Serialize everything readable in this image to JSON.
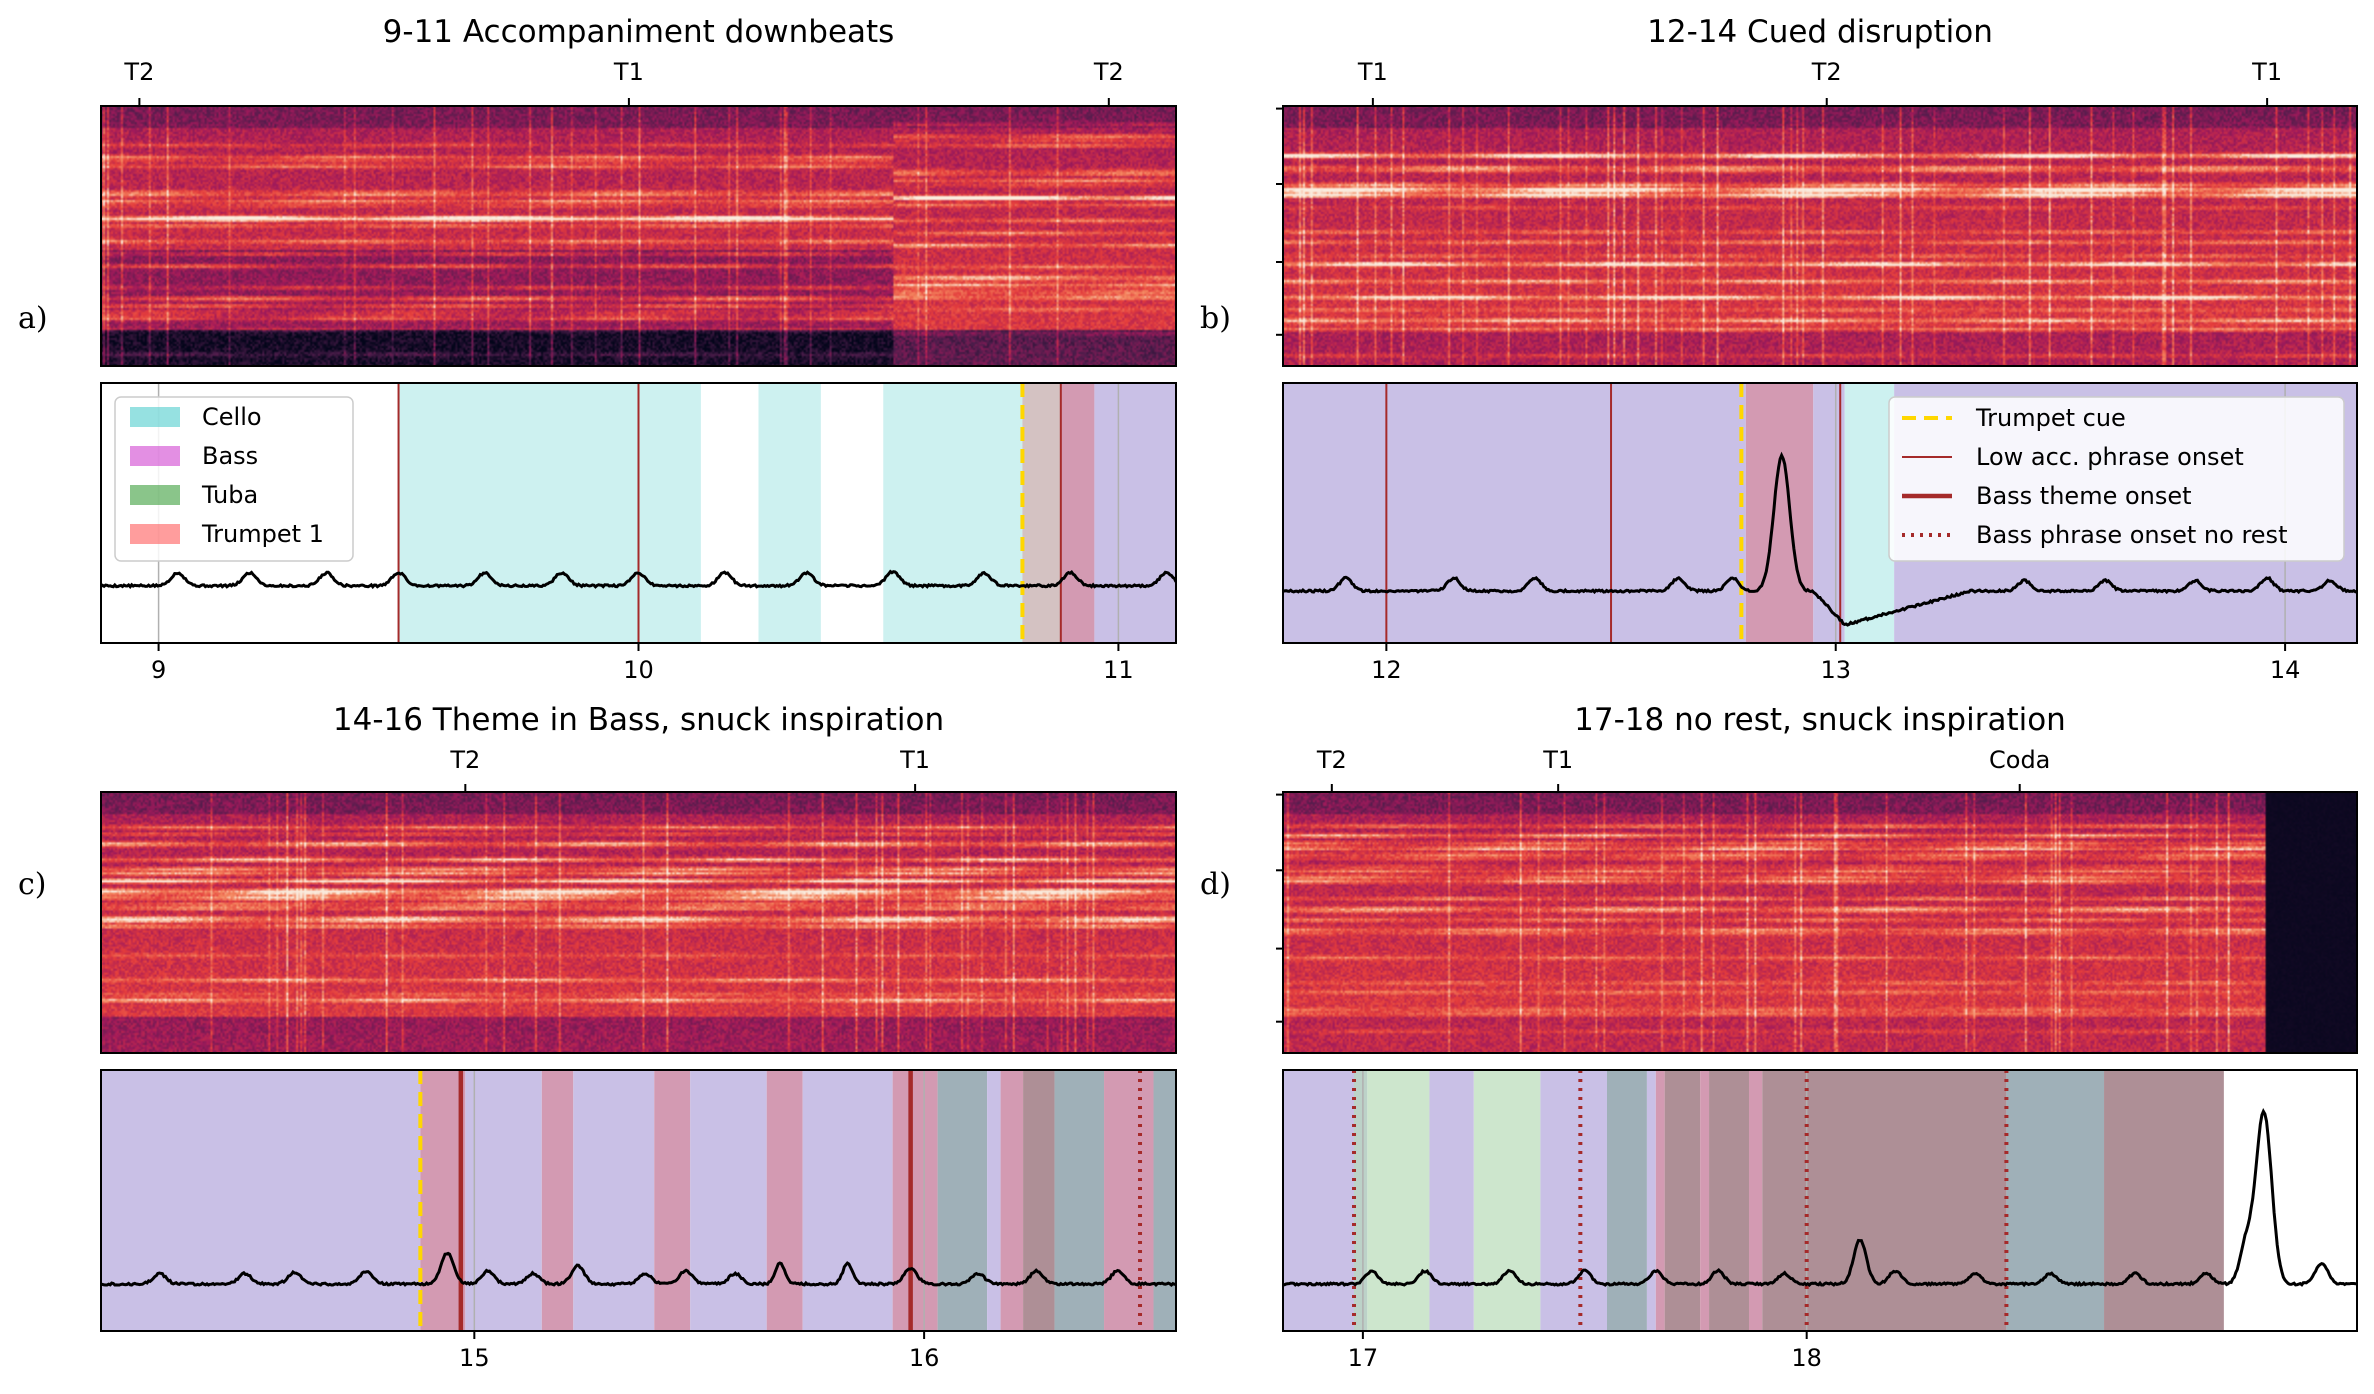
{
  "colors": {
    "cello": "#40c8c8",
    "bass": "#cc33cc",
    "tuba": "#2a952a",
    "trumpet1": "#ff4d4d",
    "base_violet": "#c9c0e6",
    "trumpet_cue": "#ffd700",
    "onset": "#a52a2a"
  },
  "legend_left": [
    {
      "label": "Cello",
      "color": "#40c8c8"
    },
    {
      "label": "Bass",
      "color": "#cc33cc"
    },
    {
      "label": "Tuba",
      "color": "#2a952a"
    },
    {
      "label": "Trumpet 1",
      "color": "#ff4d4d"
    }
  ],
  "legend_right": [
    {
      "label": "Trumpet cue",
      "style": "dashed-gold"
    },
    {
      "label": "Low acc. phrase onset",
      "style": "thin-brown"
    },
    {
      "label": "Bass theme onset",
      "style": "thick-brown"
    },
    {
      "label": "Bass phrase onset no rest",
      "style": "dotted-brown"
    }
  ],
  "chart_data": [
    {
      "type": "area",
      "panel_label": "a)",
      "title": "9-11 Accompaniment downbeats",
      "xlim": [
        8.88,
        11.12
      ],
      "xticks": [
        9,
        10,
        11
      ],
      "xtick_labels": [
        "9",
        "10",
        "11"
      ],
      "section_ticks": [
        {
          "x": 8.96,
          "label": "T2"
        },
        {
          "x": 9.98,
          "label": "T1"
        },
        {
          "x": 10.98,
          "label": "T2"
        }
      ],
      "spans": [
        {
          "x0": 9.5,
          "x1": 10.13,
          "color": "#cdf1f0"
        },
        {
          "x0": 10.25,
          "x1": 10.38,
          "color": "#cdf1f0"
        },
        {
          "x0": 10.51,
          "x1": 10.8,
          "color": "#cdf1f0"
        },
        {
          "x0": 10.8,
          "x1": 10.88,
          "color": "#d4c2c2"
        },
        {
          "x0": 10.88,
          "x1": 10.95,
          "color": "#d39ab2"
        },
        {
          "x0": 10.95,
          "x1": 11.12,
          "color": "#c9c0e6"
        }
      ],
      "grid_x": [
        9,
        10,
        11
      ],
      "vlines": [
        {
          "x": 9.5,
          "style": "thin-brown"
        },
        {
          "x": 10,
          "style": "thin-brown"
        },
        {
          "x": 10.8,
          "style": "dashed-gold"
        },
        {
          "x": 10.88,
          "style": "thin-brown"
        }
      ],
      "curve": {
        "baseline": 0.22,
        "noise": 0.008,
        "bumps": [
          {
            "c": 9.04,
            "w": 0.02,
            "h": 0.05
          },
          {
            "c": 9.19,
            "w": 0.02,
            "h": 0.05
          },
          {
            "c": 9.35,
            "w": 0.02,
            "h": 0.05
          },
          {
            "c": 9.5,
            "w": 0.02,
            "h": 0.05
          },
          {
            "c": 9.68,
            "w": 0.02,
            "h": 0.05
          },
          {
            "c": 9.84,
            "w": 0.02,
            "h": 0.05
          },
          {
            "c": 10.0,
            "w": 0.02,
            "h": 0.05
          },
          {
            "c": 10.18,
            "w": 0.02,
            "h": 0.05
          },
          {
            "c": 10.35,
            "w": 0.02,
            "h": 0.05
          },
          {
            "c": 10.53,
            "w": 0.02,
            "h": 0.055
          },
          {
            "c": 10.72,
            "w": 0.02,
            "h": 0.05
          },
          {
            "c": 10.9,
            "w": 0.02,
            "h": 0.05
          },
          {
            "c": 11.1,
            "w": 0.02,
            "h": 0.05
          }
        ],
        "dips": []
      },
      "spectrogram": {
        "seed": 11,
        "darken_low": 0.35,
        "silence_from": null,
        "shift_at": 10.53,
        "vshift": 0.08
      }
    },
    {
      "type": "area",
      "panel_label": "b)",
      "title": "12-14 Cued disruption",
      "xlim": [
        11.77,
        14.16
      ],
      "xticks": [
        12,
        13,
        14
      ],
      "xtick_labels": [
        "12",
        "13",
        "14"
      ],
      "section_ticks": [
        {
          "x": 11.97,
          "label": "T1"
        },
        {
          "x": 12.98,
          "label": "T2"
        },
        {
          "x": 13.96,
          "label": "T1"
        }
      ],
      "spans": [
        {
          "x0": 11.77,
          "x1": 12.8,
          "color": "#c9c0e6"
        },
        {
          "x0": 12.8,
          "x1": 12.95,
          "color": "#d39ab2"
        },
        {
          "x0": 12.95,
          "x1": 13.02,
          "color": "#c9c0e6"
        },
        {
          "x0": 13.02,
          "x1": 13.13,
          "color": "#cdf1f0"
        },
        {
          "x0": 13.13,
          "x1": 14.16,
          "color": "#c9c0e6"
        }
      ],
      "grid_x": [
        12,
        13,
        14
      ],
      "vlines": [
        {
          "x": 12,
          "style": "thin-brown"
        },
        {
          "x": 12.5,
          "style": "thin-brown"
        },
        {
          "x": 12.79,
          "style": "dashed-gold"
        },
        {
          "x": 13.01,
          "style": "thin-brown"
        }
      ],
      "curve": {
        "baseline": 0.2,
        "noise": 0.008,
        "bumps": [
          {
            "c": 11.91,
            "w": 0.02,
            "h": 0.05
          },
          {
            "c": 12.15,
            "w": 0.02,
            "h": 0.05
          },
          {
            "c": 12.33,
            "w": 0.02,
            "h": 0.05
          },
          {
            "c": 12.65,
            "w": 0.02,
            "h": 0.05
          },
          {
            "c": 12.77,
            "w": 0.02,
            "h": 0.05
          },
          {
            "c": 12.88,
            "w": 0.025,
            "h": 0.52
          },
          {
            "c": 13.42,
            "w": 0.02,
            "h": 0.04
          },
          {
            "c": 13.6,
            "w": 0.02,
            "h": 0.04
          },
          {
            "c": 13.8,
            "w": 0.02,
            "h": 0.04
          },
          {
            "c": 13.96,
            "w": 0.02,
            "h": 0.05
          },
          {
            "c": 14.1,
            "w": 0.02,
            "h": 0.04
          }
        ],
        "dips": [
          {
            "c0": 12.95,
            "c1": 13.3,
            "h": 0.13
          }
        ]
      },
      "spectrogram": {
        "seed": 23,
        "darken_low": 0.15,
        "silence_from": null,
        "shift_at": null,
        "vshift": 0
      }
    },
    {
      "type": "area",
      "panel_label": "c)",
      "title": "14-16 Theme in Bass, snuck inspiration",
      "xlim": [
        14.17,
        16.56
      ],
      "xticks": [
        15,
        16
      ],
      "xtick_labels": [
        "15",
        "16"
      ],
      "section_ticks": [
        {
          "x": 14.98,
          "label": "T2"
        },
        {
          "x": 15.98,
          "label": "T1"
        }
      ],
      "spans": [
        {
          "x0": 14.17,
          "x1": 14.88,
          "color": "#c9c0e6"
        },
        {
          "x0": 14.88,
          "x1": 14.98,
          "color": "#d39ab2"
        },
        {
          "x0": 14.98,
          "x1": 15.15,
          "color": "#c9c0e6"
        },
        {
          "x0": 15.15,
          "x1": 15.22,
          "color": "#d39ab2"
        },
        {
          "x0": 15.22,
          "x1": 15.4,
          "color": "#c9c0e6"
        },
        {
          "x0": 15.4,
          "x1": 15.48,
          "color": "#d39ab2"
        },
        {
          "x0": 15.48,
          "x1": 15.65,
          "color": "#c9c0e6"
        },
        {
          "x0": 15.65,
          "x1": 15.73,
          "color": "#d39ab2"
        },
        {
          "x0": 15.73,
          "x1": 15.93,
          "color": "#c9c0e6"
        },
        {
          "x0": 15.93,
          "x1": 16.03,
          "color": "#d39ab2"
        },
        {
          "x0": 16.03,
          "x1": 16.14,
          "color": "#9fb0b8"
        },
        {
          "x0": 16.14,
          "x1": 16.17,
          "color": "#c9c0e6"
        },
        {
          "x0": 16.17,
          "x1": 16.22,
          "color": "#d39ab2"
        },
        {
          "x0": 16.22,
          "x1": 16.29,
          "color": "#ae8f96"
        },
        {
          "x0": 16.29,
          "x1": 16.4,
          "color": "#9fb0b8"
        },
        {
          "x0": 16.4,
          "x1": 16.51,
          "color": "#d39ab2"
        },
        {
          "x0": 16.51,
          "x1": 16.56,
          "color": "#9fb0b8"
        }
      ],
      "grid_x": [
        15,
        16
      ],
      "vlines": [
        {
          "x": 14.88,
          "style": "dashed-gold"
        },
        {
          "x": 14.97,
          "style": "thick-brown"
        },
        {
          "x": 15.97,
          "style": "thick-brown"
        },
        {
          "x": 16.48,
          "style": "dotted-brown"
        }
      ],
      "curve": {
        "baseline": 0.18,
        "noise": 0.008,
        "bumps": [
          {
            "c": 14.3,
            "w": 0.02,
            "h": 0.04
          },
          {
            "c": 14.49,
            "w": 0.02,
            "h": 0.04
          },
          {
            "c": 14.6,
            "w": 0.02,
            "h": 0.045
          },
          {
            "c": 14.76,
            "w": 0.02,
            "h": 0.05
          },
          {
            "c": 14.94,
            "w": 0.02,
            "h": 0.12
          },
          {
            "c": 15.03,
            "w": 0.02,
            "h": 0.05
          },
          {
            "c": 15.13,
            "w": 0.02,
            "h": 0.04
          },
          {
            "c": 15.23,
            "w": 0.02,
            "h": 0.07
          },
          {
            "c": 15.38,
            "w": 0.02,
            "h": 0.04
          },
          {
            "c": 15.47,
            "w": 0.02,
            "h": 0.05
          },
          {
            "c": 15.58,
            "w": 0.02,
            "h": 0.04
          },
          {
            "c": 15.68,
            "w": 0.015,
            "h": 0.08
          },
          {
            "c": 15.83,
            "w": 0.015,
            "h": 0.08
          },
          {
            "c": 15.97,
            "w": 0.02,
            "h": 0.06
          },
          {
            "c": 16.12,
            "w": 0.02,
            "h": 0.04
          },
          {
            "c": 16.25,
            "w": 0.02,
            "h": 0.05
          },
          {
            "c": 16.43,
            "w": 0.02,
            "h": 0.05
          }
        ],
        "dips": []
      },
      "spectrogram": {
        "seed": 37,
        "darken_low": 0.2,
        "silence_from": null,
        "shift_at": null,
        "vshift": 0
      }
    },
    {
      "type": "area",
      "panel_label": "d)",
      "title": "17-18 no rest, snuck inspiration",
      "xlim": [
        16.82,
        19.24
      ],
      "xticks": [
        17,
        18
      ],
      "xtick_labels": [
        "17",
        "18"
      ],
      "section_ticks": [
        {
          "x": 16.93,
          "label": "T2"
        },
        {
          "x": 17.44,
          "label": "T1"
        },
        {
          "x": 18.48,
          "label": "Coda"
        }
      ],
      "spans": [
        {
          "x0": 16.82,
          "x1": 16.98,
          "color": "#c9c0e6"
        },
        {
          "x0": 16.98,
          "x1": 17.01,
          "color": "#bcd2c8"
        },
        {
          "x0": 17.01,
          "x1": 17.15,
          "color": "#cde6cd"
        },
        {
          "x0": 17.15,
          "x1": 17.25,
          "color": "#c9c0e6"
        },
        {
          "x0": 17.25,
          "x1": 17.4,
          "color": "#cde6cd"
        },
        {
          "x0": 17.4,
          "x1": 17.55,
          "color": "#c9c0e6"
        },
        {
          "x0": 17.55,
          "x1": 17.64,
          "color": "#9fb0b8"
        },
        {
          "x0": 17.64,
          "x1": 17.66,
          "color": "#c9c0e6"
        },
        {
          "x0": 17.66,
          "x1": 17.68,
          "color": "#d39ab2"
        },
        {
          "x0": 17.68,
          "x1": 17.76,
          "color": "#ae8f96"
        },
        {
          "x0": 17.76,
          "x1": 17.78,
          "color": "#d39ab2"
        },
        {
          "x0": 17.78,
          "x1": 17.87,
          "color": "#ae8f96"
        },
        {
          "x0": 17.87,
          "x1": 17.9,
          "color": "#d39ab2"
        },
        {
          "x0": 17.9,
          "x1": 18.45,
          "color": "#ae8f96"
        },
        {
          "x0": 18.45,
          "x1": 18.67,
          "color": "#9fb0b8"
        },
        {
          "x0": 18.67,
          "x1": 18.94,
          "color": "#ae8f96"
        }
      ],
      "grid_x": [
        17,
        18
      ],
      "vlines": [
        {
          "x": 16.98,
          "style": "dotted-brown"
        },
        {
          "x": 17.49,
          "style": "dotted-brown"
        },
        {
          "x": 18.0,
          "style": "dotted-brown"
        },
        {
          "x": 18.45,
          "style": "dotted-brown"
        }
      ],
      "curve": {
        "baseline": 0.18,
        "noise": 0.008,
        "bumps": [
          {
            "c": 17.02,
            "w": 0.02,
            "h": 0.05
          },
          {
            "c": 17.14,
            "w": 0.02,
            "h": 0.05
          },
          {
            "c": 17.33,
            "w": 0.02,
            "h": 0.05
          },
          {
            "c": 17.5,
            "w": 0.02,
            "h": 0.05
          },
          {
            "c": 17.66,
            "w": 0.02,
            "h": 0.05
          },
          {
            "c": 17.8,
            "w": 0.02,
            "h": 0.05
          },
          {
            "c": 17.95,
            "w": 0.02,
            "h": 0.04
          },
          {
            "c": 18.12,
            "w": 0.02,
            "h": 0.17
          },
          {
            "c": 18.2,
            "w": 0.02,
            "h": 0.05
          },
          {
            "c": 18.38,
            "w": 0.02,
            "h": 0.04
          },
          {
            "c": 18.55,
            "w": 0.02,
            "h": 0.04
          },
          {
            "c": 18.74,
            "w": 0.02,
            "h": 0.04
          },
          {
            "c": 18.9,
            "w": 0.02,
            "h": 0.04
          },
          {
            "c": 19.03,
            "w": 0.025,
            "h": 0.66
          },
          {
            "c": 18.99,
            "w": 0.02,
            "h": 0.15
          },
          {
            "c": 19.16,
            "w": 0.02,
            "h": 0.08
          }
        ],
        "dips": []
      },
      "spectrogram": {
        "seed": 53,
        "darken_low": 0.1,
        "silence_from": 19.03,
        "shift_at": null,
        "vshift": 0
      }
    }
  ]
}
